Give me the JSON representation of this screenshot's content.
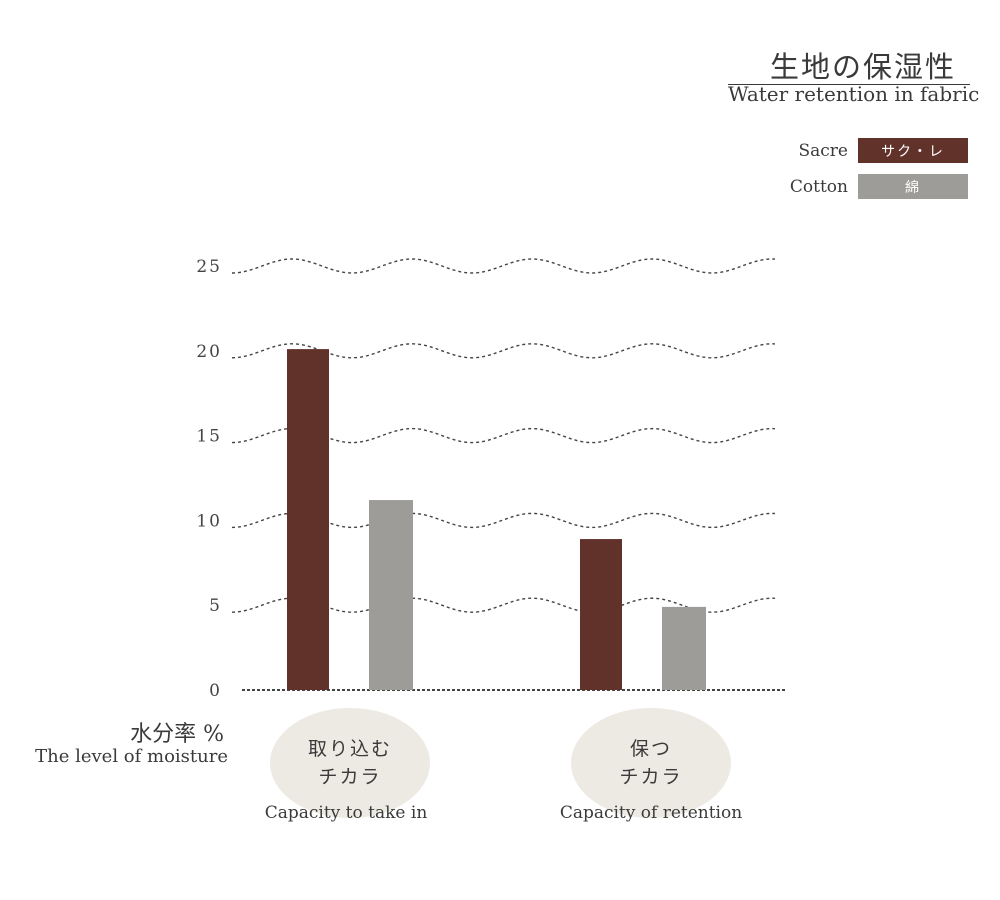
{
  "title_jp": "生地の保湿性",
  "title_en": "Water retention in fabric",
  "legend": [
    {
      "name": "Sacre",
      "label": "サク・レ",
      "color": "#61322a"
    },
    {
      "name": "Cotton",
      "label": "綿",
      "color": "#9d9c99"
    }
  ],
  "ylabel_jp": "水分率 %",
  "ylabel_en": "The level of moisture",
  "categories": [
    {
      "label_jp_line1": "取り込む",
      "label_jp_line2": "チカラ",
      "label_en": "Capacity to take in"
    },
    {
      "label_jp_line1": "保つ",
      "label_jp_line2": "チカラ",
      "label_en": "Capacity of retention"
    }
  ],
  "chart_data": {
    "type": "bar",
    "title": "生地の保湿性",
    "subtitle": "Water retention in fabric",
    "categories": [
      "Capacity to take in",
      "Capacity of retention"
    ],
    "series": [
      {
        "name": "Sacre",
        "values": [
          20.1,
          8.9
        ],
        "color": "#61322a"
      },
      {
        "name": "Cotton",
        "values": [
          11.2,
          4.9
        ],
        "color": "#9d9c99"
      }
    ],
    "ylabel": "水分率 %",
    "ylim": [
      0,
      25
    ],
    "yticks": [
      0,
      5,
      10,
      15,
      20,
      25
    ],
    "grid": true,
    "legend_position": "top-right"
  }
}
